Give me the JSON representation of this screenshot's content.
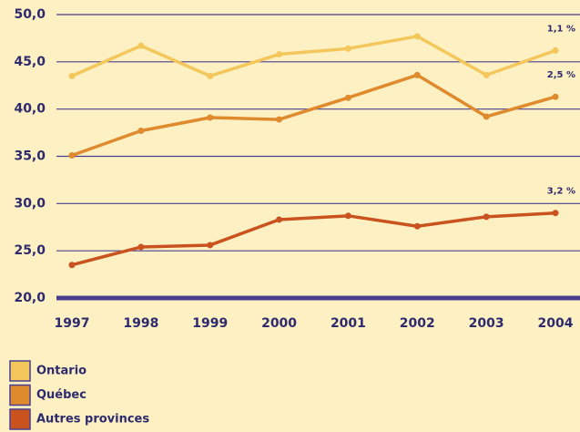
{
  "chart_data": {
    "type": "line",
    "x": [
      "1997",
      "1998",
      "1999",
      "2000",
      "2001",
      "2002",
      "2003",
      "2004"
    ],
    "series": [
      {
        "name": "Ontario",
        "color": "#f4c75c",
        "values": [
          43.5,
          46.7,
          43.5,
          45.8,
          46.4,
          47.7,
          43.6,
          46.2
        ],
        "label": "1,1 %"
      },
      {
        "name": "Québec",
        "color": "#e08a2e",
        "values": [
          35.1,
          37.7,
          39.1,
          38.9,
          41.2,
          43.6,
          39.2,
          41.3
        ],
        "label": "2,5 %"
      },
      {
        "name": "Autres provinces",
        "color": "#c9521f",
        "values": [
          23.5,
          25.4,
          25.6,
          28.3,
          28.7,
          27.6,
          28.6,
          29.0
        ],
        "label": "3,2 %"
      }
    ],
    "ylim": [
      20,
      50
    ],
    "yticks": [
      {
        "value": 20,
        "label": "20,0"
      },
      {
        "value": 25,
        "label": "25,0"
      },
      {
        "value": 30,
        "label": "30,0"
      },
      {
        "value": 35,
        "label": "35,0"
      },
      {
        "value": 40,
        "label": "40,0"
      },
      {
        "value": 45,
        "label": "45,0"
      },
      {
        "value": 50,
        "label": "50,0"
      }
    ],
    "grid": true
  }
}
